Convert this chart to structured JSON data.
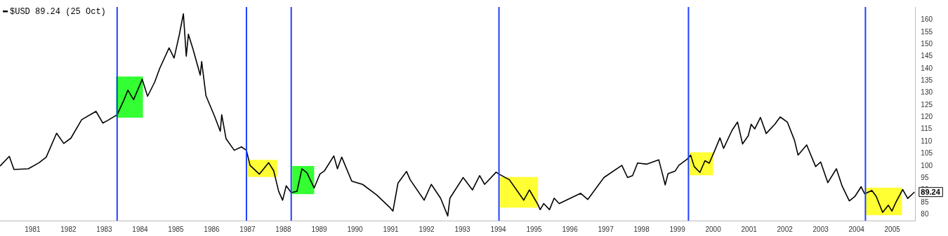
{
  "chart_data": {
    "type": "line",
    "legend": "top left",
    "grid": false,
    "marker": "none",
    "line_style": "solid",
    "xlim": [
      1980.09,
      2005.64
    ],
    "ylim": [
      77.5,
      165.3
    ],
    "xticks": [
      1981,
      1982,
      1983,
      1984,
      1985,
      1986,
      1987,
      1988,
      1989,
      1990,
      1991,
      1992,
      1993,
      1994,
      1995,
      1996,
      1997,
      1998,
      1999,
      2000,
      2001,
      2002,
      2003,
      2004,
      2005
    ],
    "yticks": [
      80,
      85,
      90,
      95,
      100,
      105,
      110,
      115,
      120,
      125,
      130,
      135,
      140,
      145,
      150,
      155,
      160
    ],
    "series": [
      {
        "name": "$USD 89.24 (25 Oct)",
        "color": "#000000",
        "x": [
          1980.09,
          1980.35,
          1980.48,
          1980.88,
          1981.18,
          1981.38,
          1981.67,
          1981.87,
          1982.07,
          1982.37,
          1982.77,
          1982.96,
          1983.1,
          1983.36,
          1983.56,
          1983.66,
          1983.82,
          1984.06,
          1984.21,
          1984.41,
          1984.55,
          1984.81,
          1984.95,
          1985.09,
          1985.21,
          1985.29,
          1985.35,
          1985.48,
          1985.68,
          1985.72,
          1985.84,
          1986.08,
          1986.24,
          1986.28,
          1986.4,
          1986.63,
          1986.83,
          1986.97,
          1987.07,
          1987.33,
          1987.59,
          1987.73,
          1987.87,
          1987.98,
          1988.08,
          1988.22,
          1988.38,
          1988.52,
          1988.66,
          1988.86,
          1989.02,
          1989.15,
          1989.41,
          1989.51,
          1989.63,
          1989.91,
          1990.21,
          1990.6,
          1990.96,
          1991.06,
          1991.2,
          1991.44,
          1991.54,
          1991.93,
          1992.13,
          1992.39,
          1992.59,
          1992.65,
          1993.02,
          1993.28,
          1993.48,
          1993.62,
          1993.94,
          1994.02,
          1994.31,
          1994.71,
          1994.87,
          1995.11,
          1995.17,
          1995.27,
          1995.43,
          1995.56,
          1995.7,
          1996.3,
          1996.5,
          1996.95,
          1997.45,
          1997.61,
          1997.75,
          1997.89,
          1998.14,
          1998.48,
          1998.58,
          1998.66,
          1998.74,
          1998.94,
          1999.04,
          1999.27,
          1999.37,
          1999.47,
          1999.63,
          1999.77,
          1999.89,
          2000.03,
          2000.19,
          2000.29,
          2000.53,
          2000.68,
          2000.82,
          2000.98,
          2001.06,
          2001.16,
          2001.32,
          2001.48,
          2001.72,
          2001.87,
          2002.07,
          2002.27,
          2002.37,
          2002.61,
          2002.86,
          2003.0,
          2003.2,
          2003.44,
          2003.6,
          2003.8,
          2003.96,
          2004.13,
          2004.23,
          2004.43,
          2004.55,
          2004.73,
          2004.89,
          2004.99,
          2005.09,
          2005.29,
          2005.43,
          2005.62
        ],
        "values": [
          99.9,
          103.9,
          98.5,
          98.8,
          101.3,
          103.6,
          113.4,
          109.2,
          111.4,
          119,
          122.4,
          117.6,
          118.7,
          121,
          127.4,
          131.1,
          127.2,
          135.6,
          128.6,
          134.5,
          140.1,
          148.5,
          144.3,
          153.5,
          162.5,
          145.1,
          154.1,
          147.9,
          137.3,
          142.9,
          128.8,
          120.4,
          114.2,
          121,
          111.2,
          106.4,
          107.8,
          106.4,
          100.2,
          96.6,
          101.3,
          98,
          89.5,
          85.9,
          91.8,
          89,
          89.5,
          98.8,
          97.1,
          90.9,
          96.6,
          98,
          104.1,
          98.8,
          103.6,
          93.7,
          92.4,
          88.1,
          83.1,
          81.4,
          92.9,
          97.7,
          94.3,
          85.9,
          92.4,
          86.7,
          79.4,
          86.7,
          95.2,
          90.1,
          96,
          92.4,
          97.4,
          96.6,
          94.3,
          85.9,
          90.1,
          84,
          82,
          84.5,
          82,
          86.7,
          84.5,
          88.7,
          86.2,
          95.2,
          100.2,
          95.2,
          96,
          101.2,
          100.7,
          102.5,
          96.9,
          92.2,
          96.8,
          97.9,
          100.2,
          102.7,
          104.4,
          99.7,
          97.3,
          102.1,
          101.1,
          105.8,
          111.5,
          107.2,
          114.7,
          118,
          109,
          112.4,
          117.1,
          115.2,
          119.9,
          113.3,
          117.1,
          120.1,
          118,
          110.5,
          104.4,
          108.6,
          99.7,
          101.6,
          93.1,
          98.8,
          91.7,
          85.6,
          87.5,
          91.4,
          88.5,
          89.9,
          87.5,
          80.9,
          83.8,
          81.4,
          84.7,
          90.3,
          86.6,
          89.24
        ]
      }
    ],
    "ref_lines": [
      {
        "axis": "x",
        "value": 1983.36,
        "color": "#1f3fff"
      },
      {
        "axis": "x",
        "value": 1986.97,
        "color": "#1f3fff"
      },
      {
        "axis": "x",
        "value": 1988.22,
        "color": "#1f3fff"
      },
      {
        "axis": "x",
        "value": 1994.02,
        "color": "#1f3fff"
      },
      {
        "axis": "x",
        "value": 1999.31,
        "color": "#1f3fff"
      },
      {
        "axis": "x",
        "value": 2004.25,
        "color": "#1f3fff"
      }
    ],
    "bands": [
      {
        "axis": "x",
        "from": 1983.33,
        "to": 1984.08,
        "color": "#33ff33"
      },
      {
        "axis": "x",
        "from": 1987.0,
        "to": 1987.83,
        "color": "#ffff33"
      },
      {
        "axis": "x",
        "from": 1988.25,
        "to": 1988.86,
        "color": "#33ff33"
      },
      {
        "axis": "x",
        "from": 1994.05,
        "to": 1995.11,
        "color": "#ffff33"
      },
      {
        "axis": "x",
        "from": 1999.3,
        "to": 2000.0,
        "color": "#ffff33"
      },
      {
        "axis": "x",
        "from": 2004.26,
        "to": 2005.27,
        "color": "#ffff33"
      }
    ],
    "annotations": [
      {
        "text": "89.24",
        "x": 2005.62,
        "y": 89.24
      }
    ]
  }
}
